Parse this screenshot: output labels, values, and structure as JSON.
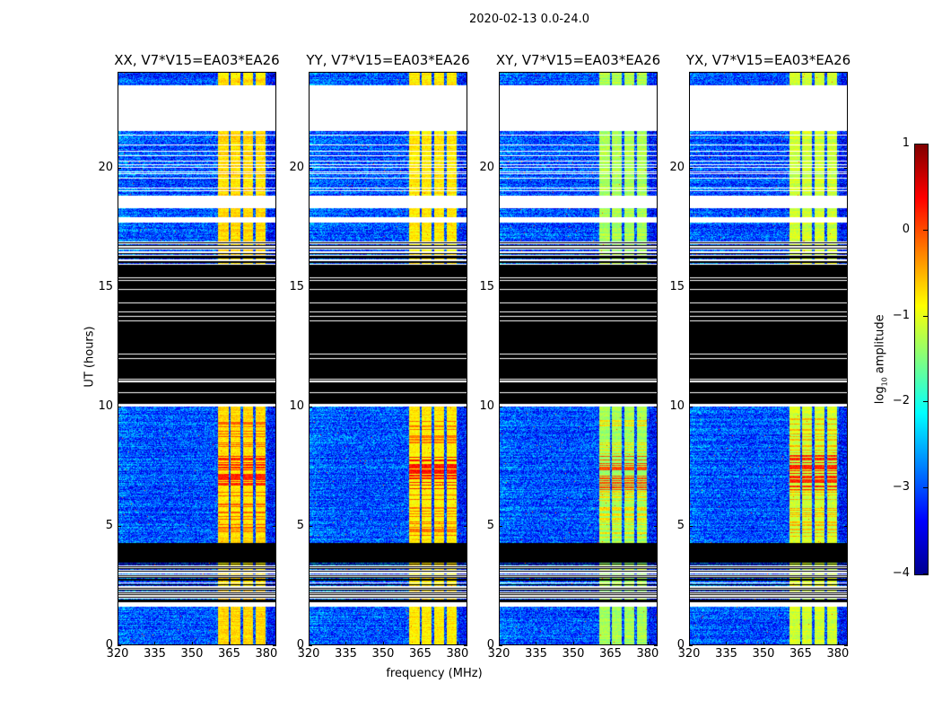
{
  "chart_data": {
    "type": "heatmap",
    "title": "2020-02-13 0.0-24.0",
    "xlabel": "frequency (MHz)",
    "ylabel": "UT (hours)",
    "xlim": [
      320,
      384
    ],
    "ylim": [
      0,
      24
    ],
    "xticks": [
      "320",
      "335",
      "350",
      "365",
      "380"
    ],
    "yticks": [
      "0",
      "5",
      "10",
      "15",
      "20"
    ],
    "colorbar": {
      "label_main": "log",
      "label_sub": "10",
      "label_tail": " amplitude",
      "range": [
        -4,
        1
      ],
      "ticks": [
        "1",
        "0",
        "−1",
        "−2",
        "−3",
        "−4"
      ],
      "colormap": "jet"
    },
    "time_segments": [
      {
        "from": 23.45,
        "to": 24.0,
        "state": "data"
      },
      {
        "from": 21.6,
        "to": 23.45,
        "state": "nodata"
      },
      {
        "from": 18.8,
        "to": 21.6,
        "state": "data_gappy"
      },
      {
        "from": 18.3,
        "to": 18.8,
        "state": "nodata"
      },
      {
        "from": 17.9,
        "to": 18.3,
        "state": "data"
      },
      {
        "from": 17.7,
        "to": 17.9,
        "state": "nodata"
      },
      {
        "from": 16.9,
        "to": 17.7,
        "state": "data"
      },
      {
        "from": 15.9,
        "to": 16.9,
        "state": "striped"
      },
      {
        "from": 10.1,
        "to": 15.9,
        "state": "flagged_lines"
      },
      {
        "from": 10.0,
        "to": 10.1,
        "state": "nodata"
      },
      {
        "from": 4.3,
        "to": 10.0,
        "state": "data"
      },
      {
        "from": 3.5,
        "to": 4.3,
        "state": "flagged"
      },
      {
        "from": 1.8,
        "to": 3.5,
        "state": "striped"
      },
      {
        "from": 1.6,
        "to": 1.8,
        "state": "nodata"
      },
      {
        "from": 0.0,
        "to": 1.6,
        "state": "data"
      }
    ],
    "bright_channels_mhz": [
      [
        360.4,
        364.7
      ],
      [
        365.5,
        369.6
      ],
      [
        370.6,
        374.6
      ],
      [
        375.6,
        379.7
      ]
    ],
    "panels": [
      {
        "title": "XX, V7*V15=EA03*EA26",
        "background_log_amp": -3.0,
        "band_log_amp": -0.7,
        "flare_log_amp": 0.2
      },
      {
        "title": "YY, V7*V15=EA03*EA26",
        "background_log_amp": -3.0,
        "band_log_amp": -0.8,
        "flare_log_amp": 0.3
      },
      {
        "title": "XY, V7*V15=EA03*EA26",
        "background_log_amp": -3.0,
        "band_log_amp": -1.3,
        "flare_log_amp": 0.0
      },
      {
        "title": "YX, V7*V15=EA03*EA26",
        "background_log_amp": -3.0,
        "band_log_amp": -1.1,
        "flare_log_amp": 0.2
      }
    ],
    "flare_hours": [
      6.5,
      8.0
    ]
  }
}
